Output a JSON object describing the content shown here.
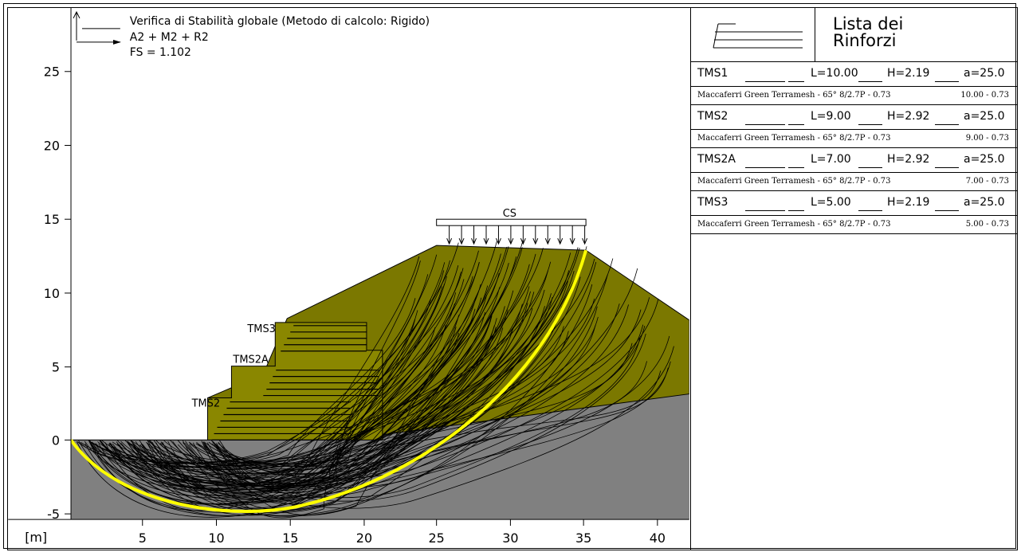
{
  "header": {
    "title": "Verifica di Stabilità globale (Metodo di calcolo: Rigido)",
    "combination": "A2 + M2 + R2",
    "fs": "FS = 1.102"
  },
  "axes": {
    "unit_label": "[m]",
    "x_ticks": [
      "5",
      "10",
      "15",
      "20",
      "25",
      "30",
      "35",
      "40"
    ],
    "y_ticks": [
      "25",
      "20",
      "15",
      "10",
      "5",
      "0",
      "-5"
    ]
  },
  "labels": {
    "load": "CS",
    "tms3": "TMS3",
    "tms2a": "TMS2A",
    "tms2": "TMS2"
  },
  "colors": {
    "fill_soil": "#7b7800",
    "foundation": "#808080",
    "critical_surface": "#ffff00"
  },
  "list": {
    "title_line1": "Lista dei",
    "title_line2": "Rinforzi",
    "items": [
      {
        "name": "TMS1",
        "L": "L=10.00",
        "H": "H=2.19",
        "a": "a=25.0",
        "product": "Maccaferri Green Terramesh - 65° 8/2.7P - 0.73",
        "dims": "10.00 - 0.73"
      },
      {
        "name": "TMS2",
        "L": "L=9.00",
        "H": "H=2.92",
        "a": "a=25.0",
        "product": "Maccaferri Green Terramesh - 65° 8/2.7P - 0.73",
        "dims": "9.00 - 0.73"
      },
      {
        "name": "TMS2A",
        "L": "L=7.00",
        "H": "H=2.92",
        "a": "a=25.0",
        "product": "Maccaferri Green Terramesh - 65° 8/2.7P - 0.73",
        "dims": "7.00 - 0.73"
      },
      {
        "name": "TMS3",
        "L": "L=5.00",
        "H": "H=2.19",
        "a": "a=25.0",
        "product": "Maccaferri Green Terramesh - 65° 8/2.7P - 0.73",
        "dims": "5.00 - 0.73"
      }
    ]
  }
}
